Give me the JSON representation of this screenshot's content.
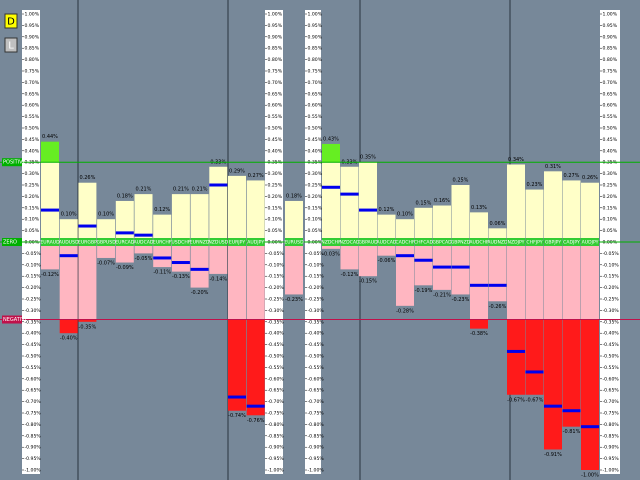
{
  "buttons": [
    "D",
    "L"
  ],
  "chart_data": {
    "type": "bar",
    "categories": [
      "EURAUD",
      "AUDUSD",
      "EURGBP",
      "GBPUSD",
      "EURCAD",
      "AUDCAD",
      "EURCHF",
      "USDCHF",
      "EURNZD",
      "NZDUSD",
      "EURJPY",
      "AUDJPY",
      "EURUSD",
      "NZDCHF",
      "NZDCAD",
      "GBPAUD",
      "AUDCAD",
      "CADCHF",
      "CHFCAD",
      "GBPCAD",
      "GBPNZD",
      "AUDCHF",
      "AUDNZD",
      "NZDJPY",
      "CHFJPY",
      "GBPJPY",
      "CADJPY",
      "AUDJPY"
    ],
    "high": [
      0.44,
      0.1,
      0.26,
      0.1,
      0.18,
      0.21,
      0.12,
      0.21,
      0.21,
      0.33,
      0.29,
      0.27,
      0.18,
      0.43,
      0.33,
      0.35,
      0.12,
      0.1,
      0.15,
      0.16,
      0.25,
      0.13,
      0.06,
      0.34,
      0.23,
      0.31,
      0.27,
      0.26
    ],
    "high_labels": [
      "0.44%",
      "0.10%",
      "0.26%",
      "0.10%",
      "0.18%",
      "0.21%",
      "0.12%",
      "0.21%",
      "0.21%",
      "0.33%",
      "0.29%",
      "0.27%",
      "0.18%",
      "0.43%",
      "0.33%",
      "0.35%",
      "0.12%",
      "0.10%",
      "0.15%",
      "0.16%",
      "0.25%",
      "0.13%",
      "0.06%",
      "0.34%",
      "0.23%",
      "0.31%",
      "0.27%",
      "0.26%"
    ],
    "low": [
      -0.12,
      -0.4,
      -0.35,
      -0.07,
      -0.09,
      -0.05,
      -0.11,
      -0.13,
      -0.2,
      -0.14,
      -0.74,
      -0.76,
      -0.23,
      -0.03,
      -0.12,
      -0.15,
      -0.06,
      -0.28,
      -0.19,
      -0.21,
      -0.23,
      -0.38,
      -0.26,
      -0.67,
      -0.67,
      -0.91,
      -0.81,
      -1.0
    ],
    "low_labels": [
      "-0.12%",
      "-0.40%",
      "-0.35%",
      "-0.07%",
      "-0.09%",
      "-0.05%",
      "-0.11%",
      "-0.13%",
      "-0.20%",
      "-0.14%",
      "-0.74%",
      "-0.76%",
      "-0.23%",
      "-0.03%",
      "-0.12%",
      "-0.15%",
      "-0.06%",
      "-0.28%",
      "-0.19%",
      "-0.21%",
      "-0.23%",
      "-0.38%",
      "-0.26%",
      "-0.67%",
      "-0.67%",
      "-0.91%",
      "-0.81%",
      "-1.00%"
    ],
    "current": [
      0.14,
      -0.06,
      0.07,
      0.01,
      0.04,
      0.03,
      -0.07,
      -0.09,
      -0.12,
      0.25,
      -0.68,
      -0.72,
      0,
      0.24,
      0.21,
      0.14,
      0,
      -0.06,
      -0.08,
      -0.11,
      -0.11,
      -0.19,
      -0.19,
      -0.48,
      -0.57,
      -0.72,
      -0.74,
      -0.81
    ],
    "current_color": "#0000ee",
    "levels": [
      {
        "label": "POSITIVE",
        "value": 0.35,
        "color": "#00b000"
      },
      {
        "label": "ZERO",
        "value": 0,
        "color": "#00b000"
      },
      {
        "label": "NEGATIVE",
        "value": -0.34,
        "color": "#c0104a"
      }
    ],
    "ylim": [
      -1,
      1
    ],
    "yticks": [
      {
        "value": 1,
        "label": "1.00%"
      },
      {
        "value": 0.95,
        "label": "0.95%"
      },
      {
        "value": 0.9,
        "label": "0.90%"
      },
      {
        "value": 0.85,
        "label": "0.85%"
      },
      {
        "value": 0.8,
        "label": "0.80%"
      },
      {
        "value": 0.75,
        "label": "0.75%"
      },
      {
        "value": 0.7,
        "label": "0.70%"
      },
      {
        "value": 0.65,
        "label": "0.65%"
      },
      {
        "value": 0.6,
        "label": "0.60%"
      },
      {
        "value": 0.55,
        "label": "0.55%"
      },
      {
        "value": 0.5,
        "label": "0.50%"
      },
      {
        "value": 0.45,
        "label": "0.45%"
      },
      {
        "value": 0.4,
        "label": "0.40%"
      },
      {
        "value": 0.35,
        "label": "0.35%"
      },
      {
        "value": 0.3,
        "label": "0.30%"
      },
      {
        "value": 0.25,
        "label": "0.25%"
      },
      {
        "value": 0.2,
        "label": "0.20%"
      },
      {
        "value": 0.15,
        "label": "0.15%"
      },
      {
        "value": 0.1,
        "label": "0.10%"
      },
      {
        "value": 0.05,
        "label": "0.05%"
      },
      {
        "value": 0,
        "label": "0.00%"
      },
      {
        "value": -0.05,
        "label": "-0.05%"
      },
      {
        "value": -0.1,
        "label": "-0.10%"
      },
      {
        "value": -0.15,
        "label": "-0.15%"
      },
      {
        "value": -0.2,
        "label": "-0.20%"
      },
      {
        "value": -0.25,
        "label": "-0.25%"
      },
      {
        "value": -0.3,
        "label": "-0.30%"
      },
      {
        "value": -0.35,
        "label": "-0.35%"
      },
      {
        "value": -0.4,
        "label": "-0.40%"
      },
      {
        "value": -0.45,
        "label": "-0.45%"
      },
      {
        "value": -0.5,
        "label": "-0.50%"
      },
      {
        "value": -0.55,
        "label": "-0.55%"
      },
      {
        "value": -0.6,
        "label": "-0.60%"
      },
      {
        "value": -0.65,
        "label": "-0.65%"
      },
      {
        "value": -0.7,
        "label": "-0.70%"
      },
      {
        "value": -0.75,
        "label": "-0.75%"
      },
      {
        "value": -0.8,
        "label": "-0.80%"
      },
      {
        "value": -0.85,
        "label": "-0.85%"
      },
      {
        "value": -0.9,
        "label": "-0.90%"
      },
      {
        "value": -0.95,
        "label": "-0.95%"
      },
      {
        "value": -1,
        "label": "-1.00%"
      }
    ]
  }
}
